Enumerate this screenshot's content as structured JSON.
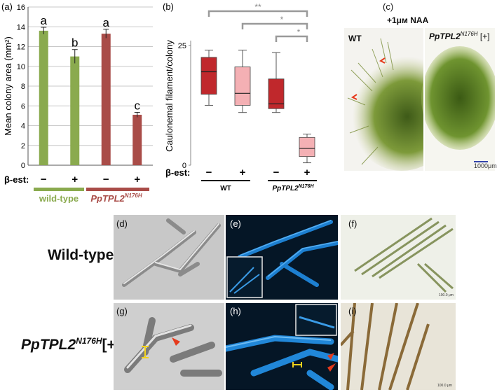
{
  "panels": {
    "a": {
      "label": "(a)",
      "chart_data": {
        "type": "bar",
        "ylabel": "Mean colony area (mm²)",
        "ylim": [
          0,
          16
        ],
        "yticks": [
          "0",
          "2",
          "4",
          "6",
          "8",
          "10",
          "12",
          "14",
          "16"
        ],
        "categories": [
          "−",
          "+",
          "−",
          "+"
        ],
        "treatment_label": "β-est:",
        "values": [
          13.6,
          11.0,
          13.3,
          5.1
        ],
        "errors": [
          0.35,
          0.7,
          0.45,
          0.25
        ],
        "letters": [
          "a",
          "b",
          "a",
          "c"
        ],
        "bar_colors": [
          "#8aaa4e",
          "#8aaa4e",
          "#a94c48",
          "#a94c48"
        ],
        "groups": [
          {
            "name": "wild-type",
            "color": "#8aaa4e"
          },
          {
            "name_main": "PpTPL2",
            "name_sup": "N176H",
            "color": "#a94c48"
          }
        ]
      }
    },
    "b": {
      "label": "(b)",
      "chart_data": {
        "type": "box",
        "ylabel": "Caulonemal filament/colony",
        "ylim": [
          0,
          26
        ],
        "yticks": [
          "0",
          "25"
        ],
        "treatment_label": "β-est:",
        "categories": [
          "−",
          "+",
          "−",
          "+"
        ],
        "boxes": [
          {
            "min": 12.5,
            "q1": 14.8,
            "median": 19.5,
            "q3": 22.5,
            "max": 24.0,
            "color": "#c0282c"
          },
          {
            "min": 11.0,
            "q1": 12.5,
            "median": 15.0,
            "q3": 20.5,
            "max": 24.0,
            "color": "#f4b0b4"
          },
          {
            "min": 11.0,
            "q1": 11.8,
            "median": 12.8,
            "q3": 18.0,
            "max": 23.5,
            "color": "#c0282c"
          },
          {
            "min": 0.5,
            "q1": 1.8,
            "median": 3.5,
            "q3": 5.8,
            "max": 6.5,
            "color": "#f4b0b4"
          }
        ],
        "group_labels": [
          {
            "name": "WT"
          },
          {
            "name_main": "PpTPL2",
            "name_sup": "N176H"
          }
        ],
        "significance": [
          "**",
          "*",
          "*"
        ]
      }
    },
    "c": {
      "label": "(c)",
      "title": "+1μм  NAA",
      "left_label": "WT",
      "right_label_main": "PpTPL2",
      "right_label_sup": "N176H",
      "right_label_suffix": " [+]",
      "scale_label": "1000μm"
    },
    "micro": {
      "row_labels": {
        "wild_type": "Wild-type",
        "mutant_main": "PpTPL2",
        "mutant_sup": "N176H",
        "mutant_suffix": "[+]"
      },
      "labels": [
        "(d)",
        "(e)",
        "(f)",
        "(g)",
        "(h)",
        "(i)"
      ],
      "scale_f": "100.0 μm",
      "scale_i": "100.0 μm"
    }
  }
}
